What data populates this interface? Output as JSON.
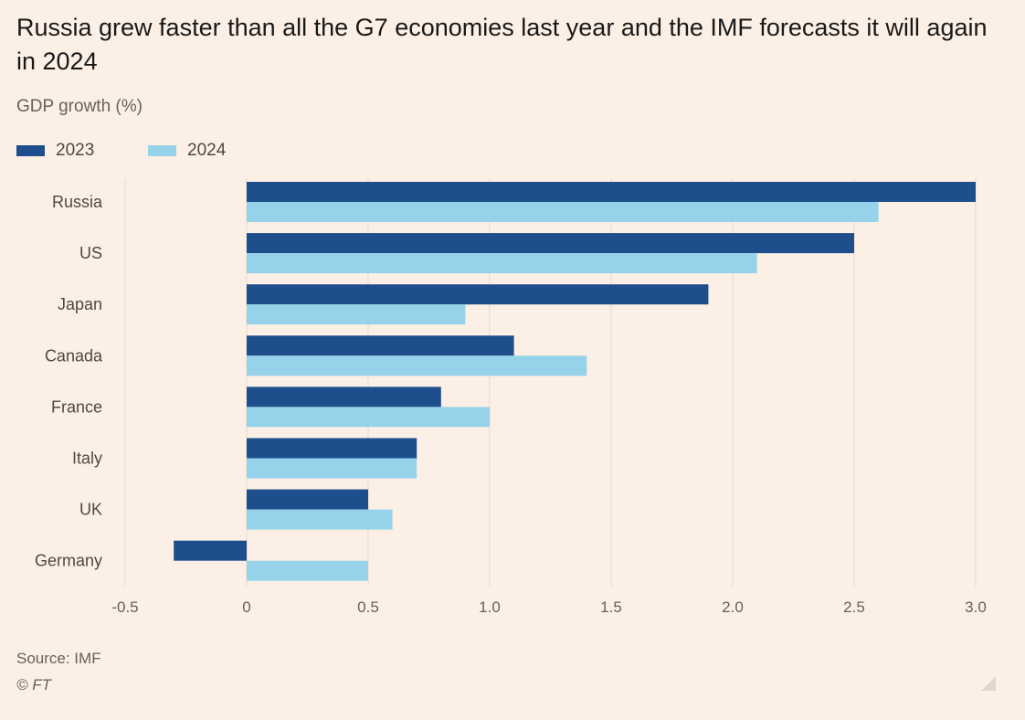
{
  "title": "Russia grew faster than all the G7 economies last year and the IMF forecasts it will again in 2024",
  "subtitle": "GDP growth (%)",
  "source": "Source: IMF",
  "credit": "© FT",
  "colors": {
    "background": "#fcf0e6",
    "series_2023": "#1f4e8c",
    "series_2024": "#96d3ea",
    "gridline": "#e6d9ce",
    "axis_text": "#66605c"
  },
  "icons": {
    "resize": "resize-handle-icon"
  },
  "chart_data": {
    "type": "bar",
    "orientation": "horizontal",
    "categories": [
      "Russia",
      "US",
      "Japan",
      "Canada",
      "France",
      "Italy",
      "UK",
      "Germany"
    ],
    "series": [
      {
        "name": "2023",
        "values": [
          3.0,
          2.5,
          1.9,
          1.1,
          0.8,
          0.7,
          0.5,
          -0.3
        ]
      },
      {
        "name": "2024",
        "values": [
          2.6,
          2.1,
          0.9,
          1.4,
          1.0,
          0.7,
          0.6,
          0.5
        ]
      }
    ],
    "xlim": [
      -0.5,
      3.0
    ],
    "xticks": [
      -0.5,
      0,
      0.5,
      1.0,
      1.5,
      2.0,
      2.5,
      3.0
    ],
    "xtick_labels": [
      "-0.5",
      "0",
      "0.5",
      "1.0",
      "1.5",
      "2.0",
      "2.5",
      "3.0"
    ],
    "xlabel": "",
    "ylabel": "",
    "grid": true,
    "legend_position": "top-left"
  }
}
